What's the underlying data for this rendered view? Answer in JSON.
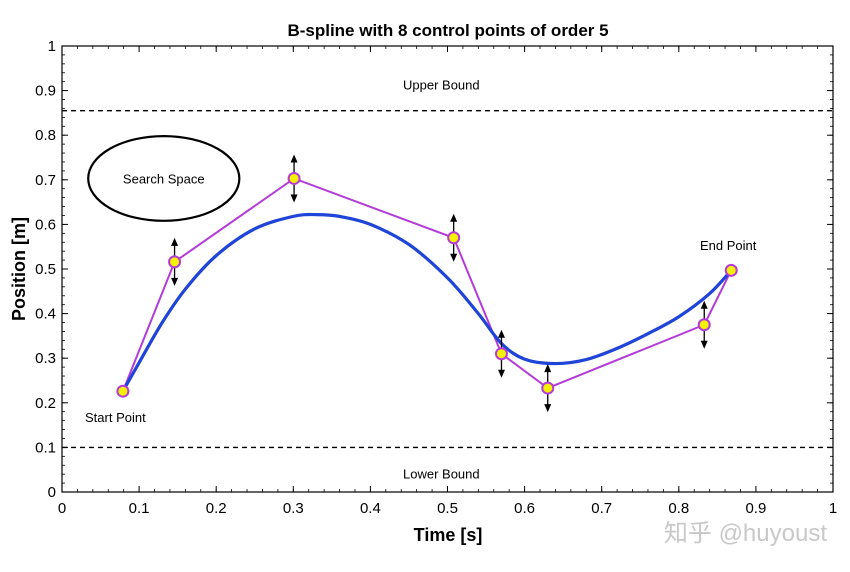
{
  "chart_data": {
    "type": "line",
    "title": "B-spline with 8 control points of order 5",
    "xlabel": "Time [s]",
    "ylabel": "Position [m]",
    "xlim": [
      0,
      1
    ],
    "ylim": [
      0,
      1
    ],
    "xticks": [
      0,
      0.1,
      0.2,
      0.3,
      0.4,
      0.5,
      0.6,
      0.7,
      0.8,
      0.9,
      1
    ],
    "yticks": [
      0,
      0.1,
      0.2,
      0.3,
      0.4,
      0.5,
      0.6,
      0.7,
      0.8,
      0.9,
      1
    ],
    "grid": false,
    "series": [
      {
        "role": "control-polygon",
        "color": "#b43bd9",
        "x": [
          0.079,
          0.146,
          0.301,
          0.508,
          0.57,
          0.63,
          0.833,
          0.868
        ],
        "y": [
          0.226,
          0.516,
          0.703,
          0.57,
          0.31,
          0.233,
          0.375,
          0.497
        ]
      },
      {
        "role": "b-spline",
        "color": "#1f44d8",
        "x": [
          0.079,
          0.1,
          0.13,
          0.16,
          0.2,
          0.25,
          0.3,
          0.33,
          0.36,
          0.4,
          0.45,
          0.5,
          0.54,
          0.57,
          0.6,
          0.64,
          0.68,
          0.72,
          0.76,
          0.8,
          0.84,
          0.868
        ],
        "y": [
          0.226,
          0.29,
          0.38,
          0.455,
          0.53,
          0.59,
          0.618,
          0.622,
          0.618,
          0.6,
          0.555,
          0.48,
          0.4,
          0.333,
          0.298,
          0.288,
          0.297,
          0.322,
          0.355,
          0.393,
          0.445,
          0.497
        ]
      }
    ],
    "bounds": [
      {
        "label": "Upper Bound",
        "y": 0.855
      },
      {
        "label": "Lower Bound",
        "y": 0.1
      }
    ],
    "movable_points_x": [
      0.146,
      0.301,
      0.508,
      0.57,
      0.63,
      0.833
    ],
    "annotations": {
      "start": "Start Point",
      "end": "End Point",
      "search": "Search Space"
    },
    "search_space": {
      "cx": 0.132,
      "cy": 0.703,
      "rx": 0.098,
      "ry": 0.095
    },
    "colors": {
      "point_fill": "#f5f000",
      "point_edge": "#b43bd9"
    }
  },
  "watermark": "知乎 @huyoust"
}
